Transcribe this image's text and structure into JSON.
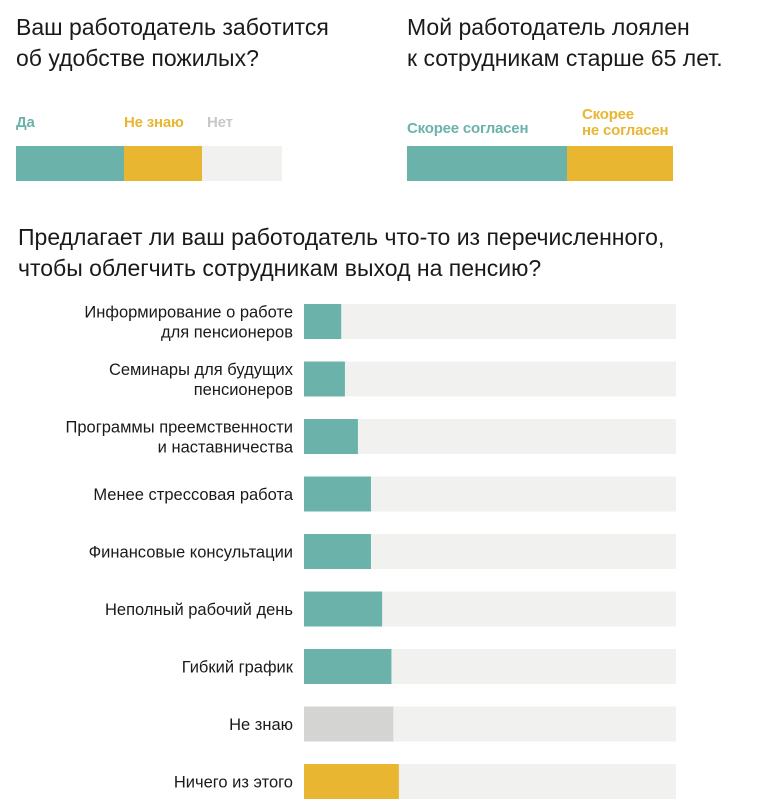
{
  "colors": {
    "teal": "#6bb3aa",
    "yellow": "#e8b631",
    "light_gray": "#f1f1f0",
    "mid_gray": "#d4d4d3"
  },
  "chart_data": [
    {
      "type": "bar",
      "orientation": "horizontal-stacked",
      "title": "Ваш работодатель заботится\nоб удобстве пожилых?",
      "series": [
        {
          "name": "Да",
          "value": 40.5,
          "color": "#6bb3aa"
        },
        {
          "name": "Не знаю",
          "value": 29.5,
          "color": "#e8b631"
        },
        {
          "name": "Нет",
          "value": 30,
          "color": "#f1f1f0",
          "label_color": "#c8c8c8"
        }
      ],
      "legend_placement": "above-bar"
    },
    {
      "type": "bar",
      "orientation": "horizontal-stacked",
      "title": "Мой работодатель лоялен\nк сотрудникам старше 65 лет.",
      "series": [
        {
          "name": "Скорее согласен",
          "value": 60,
          "color": "#6bb3aa"
        },
        {
          "name": "Скорее\nне согласен",
          "value": 40,
          "color": "#e8b631"
        }
      ],
      "legend_placement": "above-bar"
    },
    {
      "type": "bar",
      "orientation": "horizontal",
      "title": "Предлагает ли ваш работодатель что-то из перечисленного,\nчтобы облегчить сотрудникам выход на пенсию?",
      "xlim": [
        0,
        100
      ],
      "categories": [
        "Информирование о работе\nдля пенсионеров",
        "Семинары для будущих\nпенсионеров",
        "Программы преемственности\nи наставничества",
        "Менее стрессовая работа",
        "Финансовые консультации",
        "Неполный рабочий день",
        "Гибкий график",
        "Не знаю",
        "Ничего из этого"
      ],
      "values": [
        10,
        11,
        14.5,
        18,
        18,
        21,
        23.5,
        24,
        25.5
      ],
      "bar_colors": [
        "#6bb3aa",
        "#6bb3aa",
        "#6bb3aa",
        "#6bb3aa",
        "#6bb3aa",
        "#6bb3aa",
        "#6bb3aa",
        "#d4d4d3",
        "#e8b631"
      ],
      "background_color": "#f1f1f0"
    }
  ]
}
